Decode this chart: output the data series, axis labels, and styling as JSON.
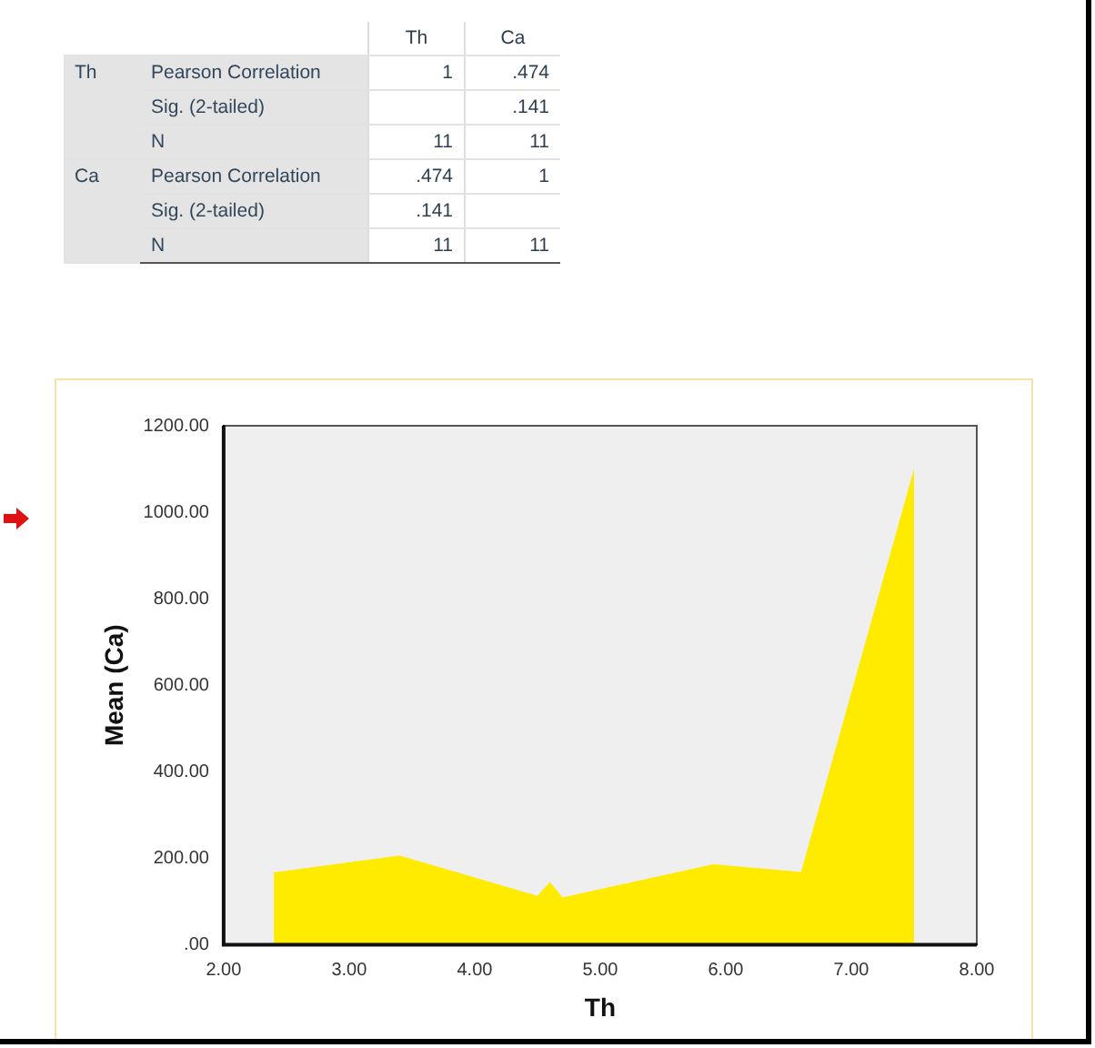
{
  "chart_data": [
    {
      "type": "heatmap",
      "categories": [
        "Th",
        "Ca"
      ],
      "y_categories": [
        "Pearson Correlation",
        "Sig. (2-tailed)",
        "N",
        "Pearson Correlation",
        "Sig. (2-tailed)",
        "N"
      ],
      "cells": [
        [
          1,
          0.474
        ],
        [
          null,
          0.141
        ],
        [
          11,
          11
        ],
        [
          0.474,
          1
        ],
        [
          0.141,
          null
        ],
        [
          11,
          11
        ]
      ],
      "cell_labels": [
        [
          "1",
          ".474"
        ],
        [
          null,
          ".141"
        ],
        [
          "11",
          "11"
        ],
        [
          ".474",
          "1"
        ],
        [
          ".141",
          null
        ],
        [
          "11",
          "11"
        ]
      ],
      "annotations": [
        "Th",
        "Ca"
      ]
    },
    {
      "type": "area",
      "xlabel": "Th",
      "ylabel": "Mean (Ca)",
      "x": [
        2.4,
        3.4,
        4.5,
        4.6,
        4.7,
        5.9,
        6.6,
        7.5
      ],
      "series": [
        {
          "color": "#ffeb00",
          "values": [
            167,
            206,
            113,
            145,
            109,
            186,
            168,
            1100
          ]
        }
      ],
      "xlim": [
        2,
        8
      ],
      "xticks": [
        {
          "value": 2,
          "label": "2.00"
        },
        {
          "value": 3,
          "label": "3.00"
        },
        {
          "value": 4,
          "label": "4.00"
        },
        {
          "value": 5,
          "label": "5.00"
        },
        {
          "value": 6,
          "label": "6.00"
        },
        {
          "value": 7,
          "label": "7.00"
        },
        {
          "value": 8,
          "label": "8.00"
        }
      ],
      "ylim": [
        0,
        1200
      ],
      "yticks": [
        {
          "value": 0,
          "label": ".00"
        },
        {
          "value": 200,
          "label": "200.00"
        },
        {
          "value": 400,
          "label": "400.00"
        },
        {
          "value": 600,
          "label": "600.00"
        },
        {
          "value": 800,
          "label": "800.00"
        },
        {
          "value": 1000,
          "label": "1000.00"
        },
        {
          "value": 1200,
          "label": "1200.00"
        }
      ],
      "grid": false,
      "legend": false
    }
  ]
}
